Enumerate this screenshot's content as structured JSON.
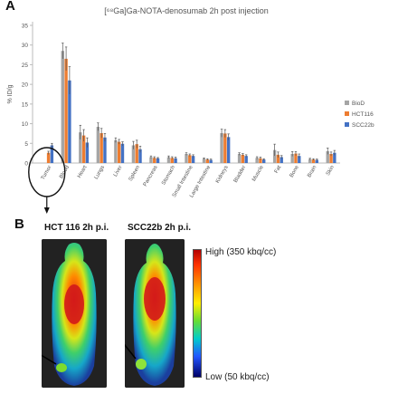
{
  "panel_a_letter": "A",
  "panel_b_letter": "B",
  "chart_data": {
    "type": "bar",
    "title": "[⁶⁸Ga]Ga-NOTA-denosumab 2h post injection",
    "ylabel": "% ID/g",
    "xlabel": "",
    "ylim": [
      0,
      35
    ],
    "yticks": [
      0,
      5,
      10,
      15,
      20,
      25,
      30,
      35
    ],
    "grid": false,
    "legend_position": "right",
    "categories": [
      "Tumor",
      "Blood",
      "Heart",
      "Lungs",
      "Liver",
      "Spleen",
      "Pancreas",
      "Stomach",
      "Small Intestine",
      "Large Intestine",
      "Kidneys",
      "Bladder",
      "Muscle",
      "Fat",
      "Bone",
      "Brain",
      "Skin"
    ],
    "series": [
      {
        "name": "BioD",
        "color": "#a5a5a5",
        "values": [
          0,
          28.5,
          7.8,
          9.2,
          5.8,
          4.5,
          1.5,
          1.5,
          2.3,
          1.1,
          7.6,
          2.3,
          1.3,
          3.3,
          2.3,
          1.0,
          3.0
        ],
        "errors": [
          0,
          2.0,
          1.8,
          1.0,
          0.6,
          1.0,
          0.3,
          0.3,
          0.3,
          0.2,
          1.0,
          0.3,
          0.3,
          1.5,
          0.6,
          0.2,
          0.8
        ]
      },
      {
        "name": "HCT116",
        "color": "#ed7d31",
        "values": [
          2.6,
          26.5,
          7.0,
          7.6,
          5.4,
          4.8,
          1.3,
          1.3,
          2.0,
          0.9,
          7.5,
          2.1,
          1.2,
          2.1,
          2.4,
          0.9,
          2.3
        ],
        "errors": [
          0.4,
          3.0,
          1.5,
          1.2,
          0.6,
          1.0,
          0.3,
          0.3,
          0.3,
          0.2,
          1.0,
          0.3,
          0.3,
          0.7,
          0.5,
          0.2,
          0.5
        ]
      },
      {
        "name": "SCC22b",
        "color": "#4472c4",
        "values": [
          4.5,
          21.0,
          5.2,
          6.5,
          4.9,
          3.5,
          1.2,
          1.2,
          1.8,
          0.8,
          6.6,
          1.8,
          0.9,
          1.5,
          1.8,
          0.8,
          2.6
        ],
        "errors": [
          0.5,
          3.5,
          1.2,
          1.0,
          0.5,
          0.8,
          0.2,
          0.3,
          0.3,
          0.2,
          0.8,
          0.3,
          0.2,
          0.4,
          0.5,
          0.2,
          0.6
        ]
      }
    ]
  },
  "images": {
    "hct_title": "HCT 116 2h p.i.",
    "scc_title": "SCC22b 2h p.i."
  },
  "colorbar": {
    "high": "High (350 kbq/cc)",
    "low": "Low (50 kbq/cc)"
  }
}
